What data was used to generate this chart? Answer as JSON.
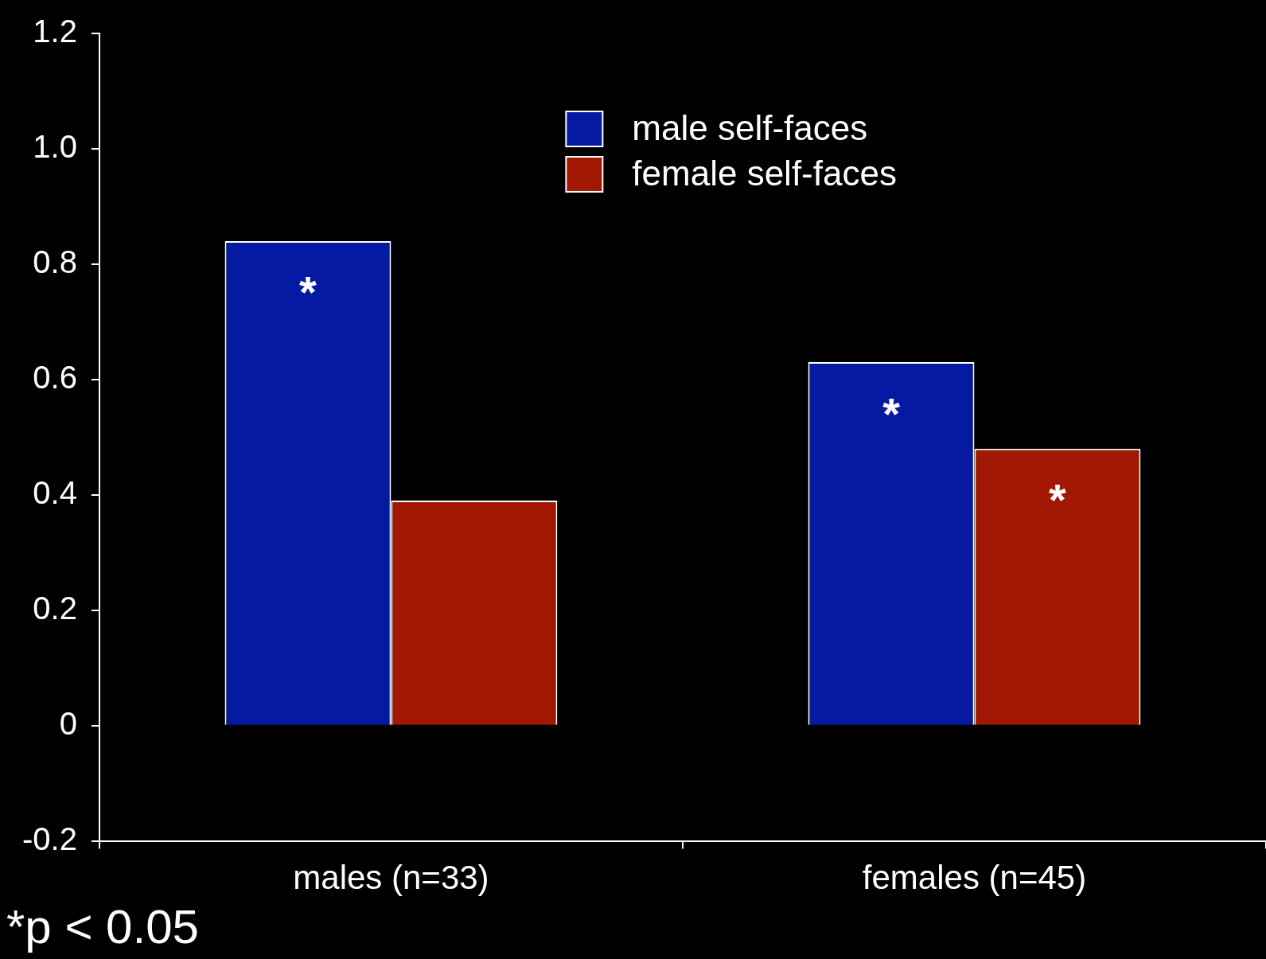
{
  "chart_data": {
    "type": "bar",
    "categories": [
      "males (n=33)",
      "females (n=45)"
    ],
    "series": [
      {
        "name": "male self-faces",
        "color": "#041aa2",
        "values": [
          0.84,
          0.63
        ],
        "value_labels": [
          "*",
          "*"
        ]
      },
      {
        "name": "female self-faces",
        "color": "#a21802",
        "values": [
          0.39,
          0.48
        ],
        "value_labels": [
          null,
          "*"
        ]
      }
    ],
    "ylim": [
      -0.2,
      1.2
    ],
    "yticks": [
      {
        "value": -0.2,
        "label": "-0.2"
      },
      {
        "value": 0,
        "label": "0"
      },
      {
        "value": 0.2,
        "label": "0.2"
      },
      {
        "value": 0.4,
        "label": "0.4"
      },
      {
        "value": 0.6,
        "label": "0.6"
      },
      {
        "value": 0.8,
        "label": "0.8"
      },
      {
        "value": 1.0,
        "label": "1.0"
      },
      {
        "value": 1.2,
        "label": "1.2"
      }
    ],
    "grid": false,
    "legend": "top",
    "annotations": [
      "*p < 0.05"
    ]
  }
}
